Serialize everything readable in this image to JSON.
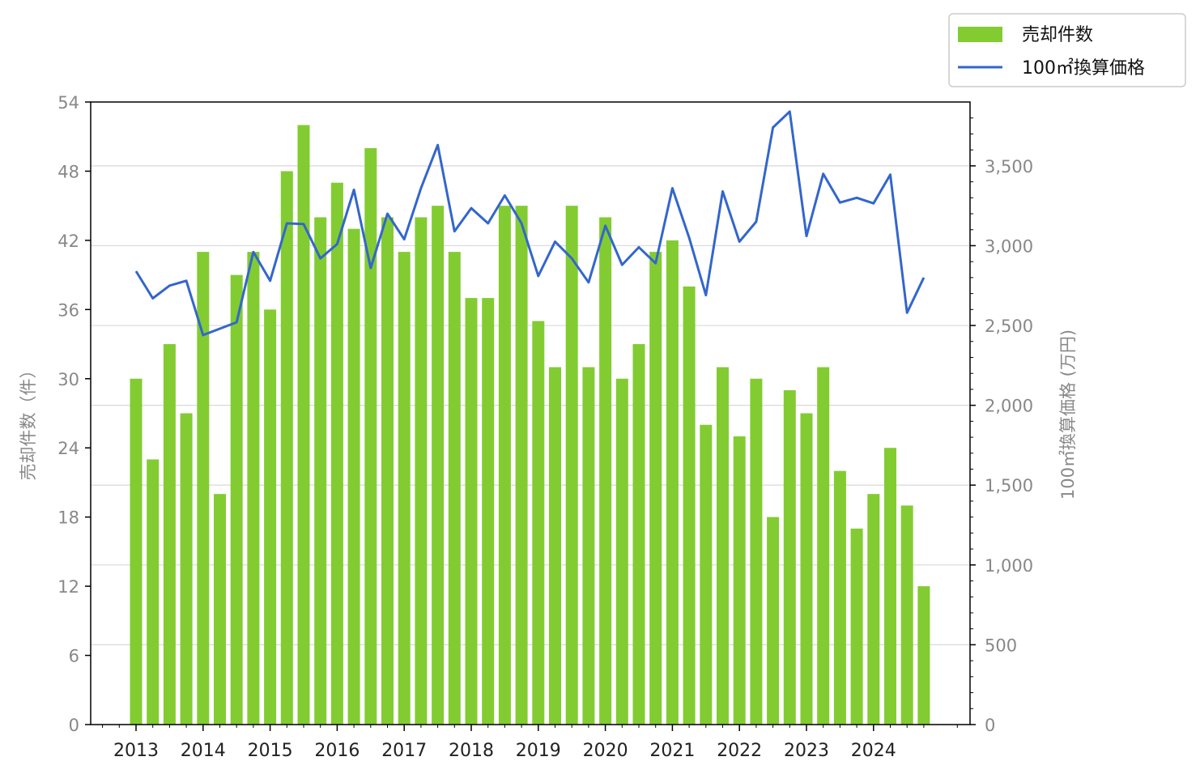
{
  "chart_data": {
    "type": "bar",
    "categories": [
      "2013",
      "2013",
      "2013",
      "2013",
      "2014",
      "2014",
      "2014",
      "2014",
      "2015",
      "2015",
      "2015",
      "2015",
      "2016",
      "2016",
      "2016",
      "2016",
      "2017",
      "2017",
      "2017",
      "2017",
      "2018",
      "2018",
      "2018",
      "2018",
      "2019",
      "2019",
      "2019",
      "2019",
      "2020",
      "2020",
      "2020",
      "2020",
      "2021",
      "2021",
      "2021",
      "2021",
      "2022",
      "2022",
      "2022",
      "2022",
      "2023",
      "2023",
      "2023",
      "2023",
      "2024",
      "2024",
      "2024",
      "2024"
    ],
    "x_tick_labels": [
      "2013",
      "2014",
      "2015",
      "2016",
      "2017",
      "2018",
      "2019",
      "2020",
      "2021",
      "2022",
      "2023",
      "2024"
    ],
    "series": [
      {
        "name": "売却件数",
        "type": "bar",
        "axis": "left",
        "color": "#82cc32",
        "values": [
          30,
          23,
          33,
          27,
          41,
          20,
          39,
          41,
          36,
          48,
          52,
          44,
          47,
          43,
          50,
          44,
          41,
          44,
          45,
          41,
          37,
          37,
          45,
          45,
          35,
          31,
          45,
          31,
          44,
          30,
          33,
          41,
          42,
          38,
          26,
          31,
          25,
          30,
          18,
          29,
          27,
          31,
          22,
          17,
          20,
          24,
          19,
          12
        ]
      },
      {
        "name": "100㎡換算価格",
        "type": "line",
        "axis": "right",
        "color": "#3366cc",
        "values": [
          2840,
          2670,
          2750,
          2780,
          2440,
          2480,
          2520,
          2960,
          2780,
          3140,
          3135,
          2920,
          3010,
          3350,
          2860,
          3200,
          3040,
          3360,
          3630,
          3090,
          3235,
          3140,
          3315,
          3140,
          2810,
          3025,
          2920,
          2770,
          3125,
          2880,
          2990,
          2890,
          3360,
          3050,
          2690,
          3340,
          3025,
          3150,
          3740,
          3840,
          3060,
          3450,
          3270,
          3300,
          3265,
          3445,
          2580,
          2800
        ]
      }
    ],
    "ylabel": "売却件数（件）",
    "ylim": [
      0,
      54
    ],
    "yticks": [
      "0",
      "6",
      "12",
      "18",
      "24",
      "30",
      "36",
      "42",
      "48",
      "54"
    ],
    "y2label": "100㎡換算価格 (万円)",
    "y2lim": [
      0,
      3900
    ],
    "y2ticks": [
      "0",
      "500",
      "1,000",
      "1,500",
      "2,000",
      "2,500",
      "3,000",
      "3,500"
    ],
    "grid": "horizontal, right axis",
    "legend_position": "top-right, outside plot"
  }
}
